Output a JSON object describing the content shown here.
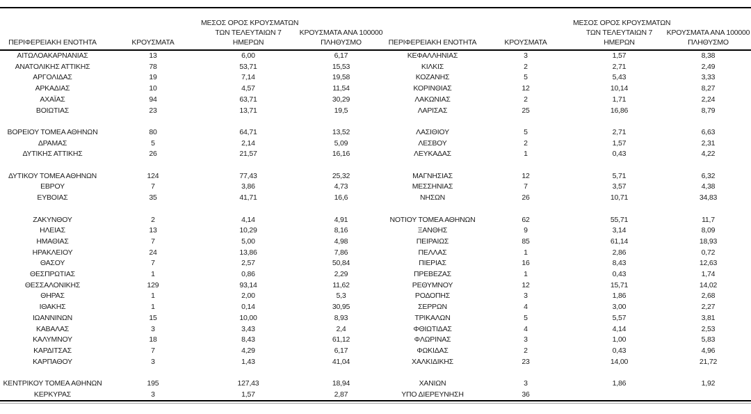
{
  "page": {
    "background_color": "#ffffff",
    "text_color": "#1c1c1c",
    "border_color": "#000000",
    "secondary_rule_color": "#999999"
  },
  "table": {
    "headers": {
      "region": "ΠΕΡΙΦΕΡΕΙΑΚΗ ΕΝΟΤΗΤΑ",
      "cases": "ΚΡΟΥΣΜΑΤΑ",
      "avg7": "ΜΕΣΟΣ ΟΡΟΣ ΚΡΟΥΣΜΑΤΩΝ\nΤΩΝ ΤΕΛΕΥΤΑΙΩΝ 7\nΗΜΕΡΩΝ",
      "per100k": "ΚΡΟΥΣΜΑΤΑ ΑΝΑ 100000\nΠΛΗΘΥΣΜΟ"
    },
    "gap_after_rows": [
      5,
      8,
      11,
      25
    ],
    "left_rows": [
      {
        "region": "ΑΙΤΩΛΟΑΚΑΡΝΑΝΙΑΣ",
        "cases": "13",
        "avg7": "6,00",
        "per100k": "6,17"
      },
      {
        "region": "ΑΝΑΤΟΛΙΚΗΣ ΑΤΤΙΚΗΣ",
        "cases": "78",
        "avg7": "53,71",
        "per100k": "15,53"
      },
      {
        "region": "ΑΡΓΟΛΙΔΑΣ",
        "cases": "19",
        "avg7": "7,14",
        "per100k": "19,58"
      },
      {
        "region": "ΑΡΚΑΔΙΑΣ",
        "cases": "10",
        "avg7": "4,57",
        "per100k": "11,54"
      },
      {
        "region": "ΑΧΑΪΑΣ",
        "cases": "94",
        "avg7": "63,71",
        "per100k": "30,29"
      },
      {
        "region": "ΒΟΙΩΤΙΑΣ",
        "cases": "23",
        "avg7": "13,71",
        "per100k": "19,5"
      },
      {
        "region": "ΒΟΡΕΙΟΥ ΤΟΜΕΑ ΑΘΗΝΩΝ",
        "cases": "80",
        "avg7": "64,71",
        "per100k": "13,52"
      },
      {
        "region": "ΔΡΑΜΑΣ",
        "cases": "5",
        "avg7": "2,14",
        "per100k": "5,09"
      },
      {
        "region": "ΔΥΤΙΚΗΣ ΑΤΤΙΚΗΣ",
        "cases": "26",
        "avg7": "21,57",
        "per100k": "16,16"
      },
      {
        "region": "ΔΥΤΙΚΟΥ ΤΟΜΕΑ ΑΘΗΝΩΝ",
        "cases": "124",
        "avg7": "77,43",
        "per100k": "25,32"
      },
      {
        "region": "ΕΒΡΟΥ",
        "cases": "7",
        "avg7": "3,86",
        "per100k": "4,73"
      },
      {
        "region": "ΕΥΒΟΙΑΣ",
        "cases": "35",
        "avg7": "41,71",
        "per100k": "16,6"
      },
      {
        "region": "ΖΑΚΥΝΘΟΥ",
        "cases": "2",
        "avg7": "4,14",
        "per100k": "4,91"
      },
      {
        "region": "ΗΛΕΙΑΣ",
        "cases": "13",
        "avg7": "10,29",
        "per100k": "8,16"
      },
      {
        "region": "ΗΜΑΘΙΑΣ",
        "cases": "7",
        "avg7": "5,00",
        "per100k": "4,98"
      },
      {
        "region": "ΗΡΑΚΛΕΙΟΥ",
        "cases": "24",
        "avg7": "13,86",
        "per100k": "7,86"
      },
      {
        "region": "ΘΑΣΟΥ",
        "cases": "7",
        "avg7": "2,57",
        "per100k": "50,84"
      },
      {
        "region": "ΘΕΣΠΡΩΤΙΑΣ",
        "cases": "1",
        "avg7": "0,86",
        "per100k": "2,29"
      },
      {
        "region": "ΘΕΣΣΑΛΟΝΙΚΗΣ",
        "cases": "129",
        "avg7": "93,14",
        "per100k": "11,62"
      },
      {
        "region": "ΘΗΡΑΣ",
        "cases": "1",
        "avg7": "2,00",
        "per100k": "5,3"
      },
      {
        "region": "ΙΘΑΚΗΣ",
        "cases": "1",
        "avg7": "0,14",
        "per100k": "30,95"
      },
      {
        "region": "ΙΩΑΝΝΙΝΩΝ",
        "cases": "15",
        "avg7": "10,00",
        "per100k": "8,93"
      },
      {
        "region": "ΚΑΒΑΛΑΣ",
        "cases": "3",
        "avg7": "3,43",
        "per100k": "2,4"
      },
      {
        "region": "ΚΑΛΥΜΝΟΥ",
        "cases": "18",
        "avg7": "8,43",
        "per100k": "61,12"
      },
      {
        "region": "ΚΑΡΔΙΤΣΑΣ",
        "cases": "7",
        "avg7": "4,29",
        "per100k": "6,17"
      },
      {
        "region": "ΚΑΡΠΑΘΟΥ",
        "cases": "3",
        "avg7": "1,43",
        "per100k": "41,04"
      },
      {
        "region": "ΚΕΝΤΡΙΚΟΥ ΤΟΜΕΑ ΑΘΗΝΩΝ",
        "cases": "195",
        "avg7": "127,43",
        "per100k": "18,94"
      },
      {
        "region": "ΚΕΡΚΥΡΑΣ",
        "cases": "3",
        "avg7": "1,57",
        "per100k": "2,87"
      }
    ],
    "right_rows": [
      {
        "region": "ΚΕΦΑΛΛΗΝΙΑΣ",
        "cases": "3",
        "avg7": "1,57",
        "per100k": "8,38"
      },
      {
        "region": "ΚΙΛΚΙΣ",
        "cases": "2",
        "avg7": "2,71",
        "per100k": "2,49"
      },
      {
        "region": "ΚΟΖΑΝΗΣ",
        "cases": "5",
        "avg7": "5,43",
        "per100k": "3,33"
      },
      {
        "region": "ΚΟΡΙΝΘΙΑΣ",
        "cases": "12",
        "avg7": "10,14",
        "per100k": "8,27"
      },
      {
        "region": "ΛΑΚΩΝΙΑΣ",
        "cases": "2",
        "avg7": "1,71",
        "per100k": "2,24"
      },
      {
        "region": "ΛΑΡΙΣΑΣ",
        "cases": "25",
        "avg7": "16,86",
        "per100k": "8,79"
      },
      {
        "region": "ΛΑΣΙΘΙΟΥ",
        "cases": "5",
        "avg7": "2,71",
        "per100k": "6,63"
      },
      {
        "region": "ΛΕΣΒΟΥ",
        "cases": "2",
        "avg7": "1,57",
        "per100k": "2,31"
      },
      {
        "region": "ΛΕΥΚΑΔΑΣ",
        "cases": "1",
        "avg7": "0,43",
        "per100k": "4,22"
      },
      {
        "region": "ΜΑΓΝΗΣΙΑΣ",
        "cases": "12",
        "avg7": "5,71",
        "per100k": "6,32"
      },
      {
        "region": "ΜΕΣΣΗΝΙΑΣ",
        "cases": "7",
        "avg7": "3,57",
        "per100k": "4,38"
      },
      {
        "region": "ΝΗΣΩΝ",
        "cases": "26",
        "avg7": "10,71",
        "per100k": "34,83"
      },
      {
        "region": "ΝΟΤΙΟΥ ΤΟΜΕΑ ΑΘΗΝΩΝ",
        "cases": "62",
        "avg7": "55,71",
        "per100k": "11,7"
      },
      {
        "region": "ΞΑΝΘΗΣ",
        "cases": "9",
        "avg7": "3,14",
        "per100k": "8,09"
      },
      {
        "region": "ΠΕΙΡΑΙΩΣ",
        "cases": "85",
        "avg7": "61,14",
        "per100k": "18,93"
      },
      {
        "region": "ΠΕΛΛΑΣ",
        "cases": "1",
        "avg7": "2,86",
        "per100k": "0,72"
      },
      {
        "region": "ΠΙΕΡΙΑΣ",
        "cases": "16",
        "avg7": "8,43",
        "per100k": "12,63"
      },
      {
        "region": "ΠΡΕΒΕΖΑΣ",
        "cases": "1",
        "avg7": "0,43",
        "per100k": "1,74"
      },
      {
        "region": "ΡΕΘΥΜΝΟΥ",
        "cases": "12",
        "avg7": "15,71",
        "per100k": "14,02"
      },
      {
        "region": "ΡΟΔΟΠΗΣ",
        "cases": "3",
        "avg7": "1,86",
        "per100k": "2,68"
      },
      {
        "region": "ΣΕΡΡΩΝ",
        "cases": "4",
        "avg7": "3,00",
        "per100k": "2,27"
      },
      {
        "region": "ΤΡΙΚΑΛΩΝ",
        "cases": "5",
        "avg7": "5,57",
        "per100k": "3,81"
      },
      {
        "region": "ΦΘΙΩΤΙΔΑΣ",
        "cases": "4",
        "avg7": "4,14",
        "per100k": "2,53"
      },
      {
        "region": "ΦΛΩΡΙΝΑΣ",
        "cases": "3",
        "avg7": "1,00",
        "per100k": "5,83"
      },
      {
        "region": "ΦΩΚΙΔΑΣ",
        "cases": "2",
        "avg7": "0,43",
        "per100k": "4,96"
      },
      {
        "region": "ΧΑΛΚΙΔΙΚΗΣ",
        "cases": "23",
        "avg7": "14,00",
        "per100k": "21,72"
      },
      {
        "region": "ΧΑΝΙΩΝ",
        "cases": "3",
        "avg7": "1,86",
        "per100k": "1,92"
      },
      {
        "region": "ΥΠΟ ΔΙΕΡΕΥΝΗΣΗ",
        "cases": "36",
        "avg7": "",
        "per100k": ""
      }
    ]
  }
}
